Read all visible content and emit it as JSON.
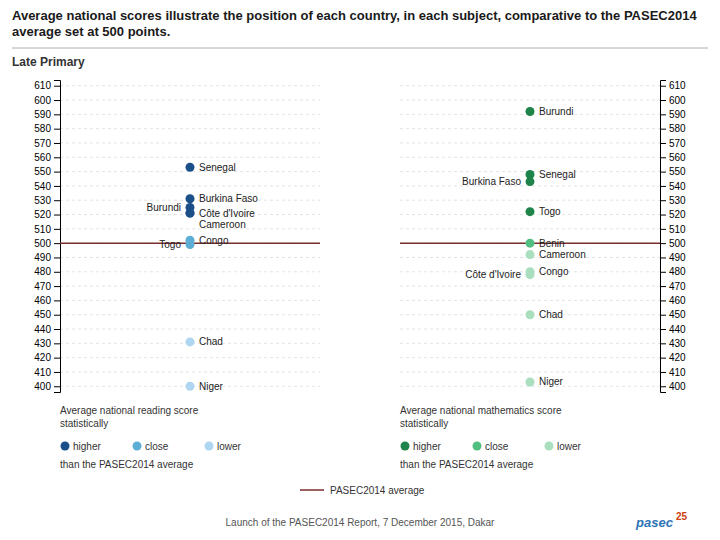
{
  "chart_data": [
    {
      "type": "dot",
      "title": "Average national scores illustrate the position of each country, in each subject, comparative to the PASEC2014 average set at 500 points.",
      "subtitle": "Late Primary",
      "categories": [
        "Senegal",
        "Burkina Faso",
        "Burundi",
        "Côte d'Ivoire",
        "Cameroon",
        "Congo",
        "Togo",
        "Chad",
        "Niger"
      ],
      "series": [
        {
          "name": "higher",
          "color": "#1b4f8a",
          "values": [
            553,
            531,
            525,
            521,
            521,
            null,
            null,
            null,
            null
          ]
        },
        {
          "name": "close",
          "color": "#5daed4",
          "values": [
            null,
            null,
            null,
            null,
            null,
            502,
            499,
            null,
            null
          ]
        },
        {
          "name": "lower",
          "color": "#aed6f1",
          "values": [
            null,
            null,
            null,
            null,
            null,
            null,
            null,
            431,
            400
          ]
        }
      ],
      "marker": "circle",
      "reference": {
        "value": 500,
        "label": "PASEC2014 average",
        "color": "#7b2d2d"
      },
      "ylim": [
        396,
        614
      ],
      "yticks": [
        400,
        410,
        420,
        430,
        440,
        450,
        460,
        470,
        480,
        490,
        500,
        510,
        520,
        530,
        540,
        550,
        560,
        570,
        580,
        590,
        600,
        610
      ],
      "grid": true,
      "annotations": [
        "Average national reading score\nstatistically",
        "than the PASEC2014 average",
        "Launch of the PASEC2014 Report, 7 December 2015, Dakar",
        "pasec",
        "25"
      ]
    },
    {
      "type": "dot",
      "categories": [
        "Burundi",
        "Senegal",
        "Burkina Faso",
        "Togo",
        "Benin",
        "Cameroon",
        "Congo",
        "Côte d'Ivoire",
        "Chad",
        "Niger"
      ],
      "series": [
        {
          "name": "higher",
          "color": "#1e8449",
          "values": [
            592,
            548,
            543,
            522,
            null,
            null,
            null,
            null,
            null,
            null
          ]
        },
        {
          "name": "close",
          "color": "#52be80",
          "values": [
            null,
            null,
            null,
            null,
            500,
            null,
            null,
            null,
            null,
            null
          ]
        },
        {
          "name": "lower",
          "color": "#a9dfbf",
          "values": [
            null,
            null,
            null,
            null,
            null,
            492,
            480,
            478,
            450,
            403
          ]
        }
      ],
      "marker": "circle",
      "reference": {
        "value": 500,
        "color": "#7b2d2d"
      },
      "ylim": [
        396,
        614
      ],
      "yticks": [
        400,
        410,
        420,
        430,
        440,
        450,
        460,
        470,
        480,
        490,
        500,
        510,
        520,
        530,
        540,
        550,
        560,
        570,
        580,
        590,
        600,
        610
      ],
      "grid": true,
      "annotations": [
        "Average national mathematics score\nstatistically",
        "than the PASEC2014 average"
      ]
    }
  ]
}
